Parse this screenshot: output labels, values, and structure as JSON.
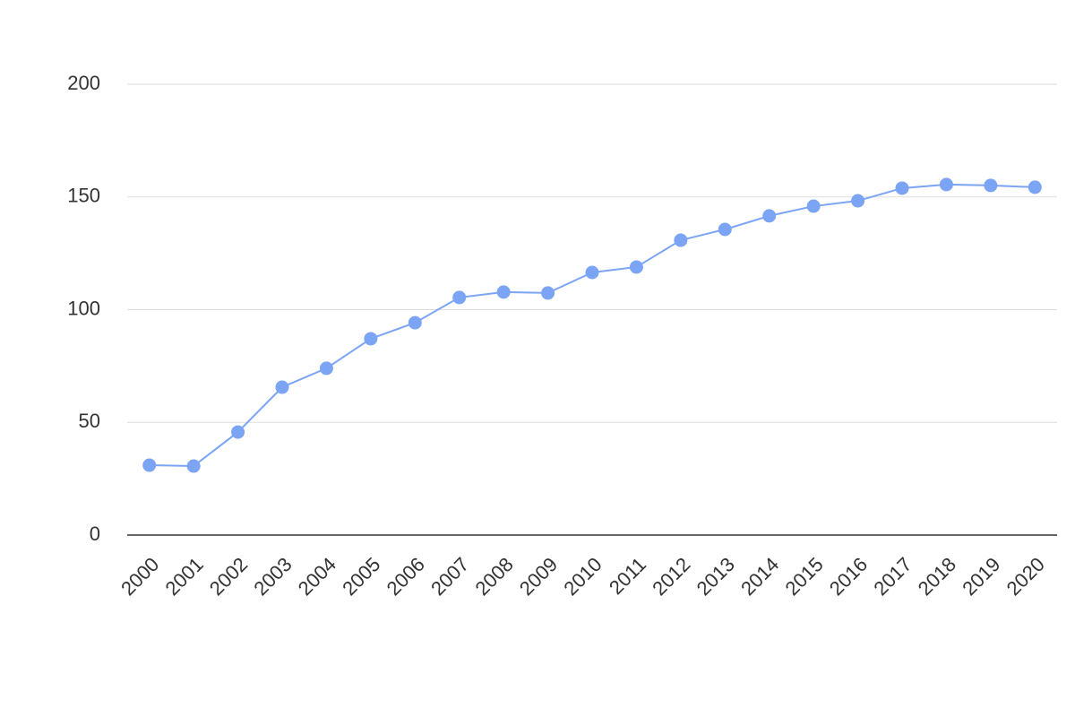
{
  "chart_data": {
    "type": "line",
    "categories": [
      "2000",
      "2001",
      "2002",
      "2003",
      "2004",
      "2005",
      "2006",
      "2007",
      "2008",
      "2009",
      "2010",
      "2011",
      "2012",
      "2013",
      "2014",
      "2015",
      "2016",
      "2017",
      "2018",
      "2019",
      "2020"
    ],
    "values": [
      31.0,
      30.6,
      45.7,
      65.6,
      74.0,
      87.1,
      94.2,
      105.4,
      107.8,
      107.4,
      116.5,
      118.9,
      130.8,
      135.6,
      141.6,
      145.9,
      148.3,
      153.9,
      155.5,
      155.1,
      154.3
    ],
    "color": "#7ba4f4",
    "ylim": [
      0,
      200
    ],
    "yticks": [
      0,
      50,
      100,
      150,
      200
    ],
    "grid": true
  }
}
